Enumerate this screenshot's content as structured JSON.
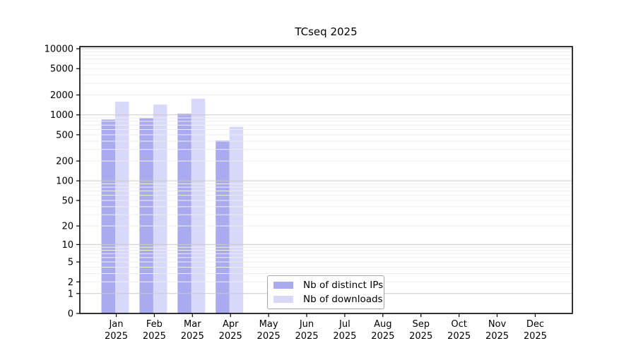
{
  "chart_data": {
    "type": "bar",
    "title": "TCseq 2025",
    "categories": [
      "Jan",
      "Feb",
      "Mar",
      "Apr",
      "May",
      "Jun",
      "Jul",
      "Aug",
      "Sep",
      "Oct",
      "Nov",
      "Dec"
    ],
    "x_tick_year": "2025",
    "series": [
      {
        "name": "Nb of distinct IPs",
        "color": "#aaaaee",
        "values": [
          850,
          905,
          1040,
          410,
          null,
          null,
          null,
          null,
          null,
          null,
          null,
          null
        ]
      },
      {
        "name": "Nb of downloads",
        "color": "#d8d8f8",
        "values": [
          1580,
          1430,
          1760,
          660,
          null,
          null,
          null,
          null,
          null,
          null,
          null,
          null
        ]
      }
    ],
    "y_scale": "log1p",
    "y_ticks": [
      0,
      1,
      2,
      5,
      10,
      20,
      50,
      100,
      200,
      500,
      1000,
      2000,
      5000,
      10000
    ],
    "ylim": [
      0,
      10800
    ],
    "xlabel": "",
    "ylabel": "",
    "grid": {
      "show": true,
      "orientation": "horizontal",
      "major_color": "#c9c9c9",
      "minor_color": "#ededed"
    },
    "legend": {
      "position": "bottom-center",
      "border_color": "#a6a6a6",
      "bg": "#ffffff"
    },
    "frame_color": "#000000",
    "background": "#ffffff",
    "tick_label_color": "#000000"
  }
}
